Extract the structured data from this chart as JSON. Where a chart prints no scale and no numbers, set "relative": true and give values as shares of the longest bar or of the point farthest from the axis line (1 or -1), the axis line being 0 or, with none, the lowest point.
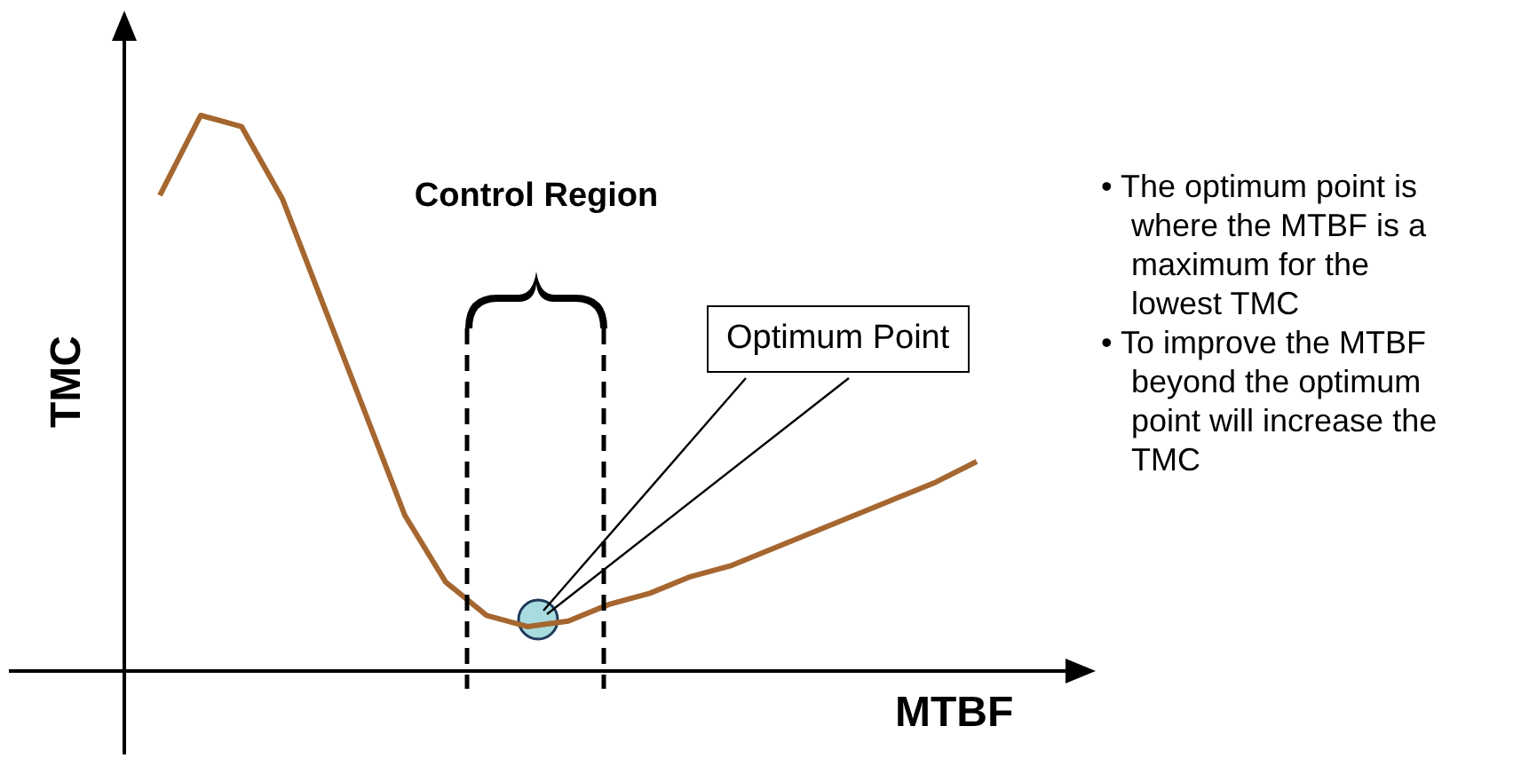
{
  "chart_data": {
    "type": "line",
    "relative": true,
    "xlabel": "MTBF",
    "ylabel": "TMC",
    "tick_labels": false,
    "legend": false,
    "marker": "none",
    "line_style": "solid",
    "categories": [
      null,
      null,
      null,
      null,
      null,
      null,
      null,
      null,
      null,
      null,
      null,
      null,
      null,
      null,
      null,
      null,
      null,
      null,
      null,
      null,
      null
    ],
    "series": [
      {
        "color": "#a5662f",
        "values": [
          0.856,
          1,
          0.98,
          0.85,
          0.66,
          0.47,
          0.28,
          0.16,
          0.1,
          0.08,
          0.09,
          0.12,
          0.14,
          0.17,
          0.19,
          0.22,
          0.25,
          0.28,
          0.31,
          0.34,
          0.377
        ]
      }
    ],
    "annotations": [
      "Control Region",
      "Optimum Point",
      "• The optimum point is where the MTBF is a maximum for the lowest TMC",
      "• To improve the MTBF beyond the optimum point will increase the TMC"
    ]
  }
}
